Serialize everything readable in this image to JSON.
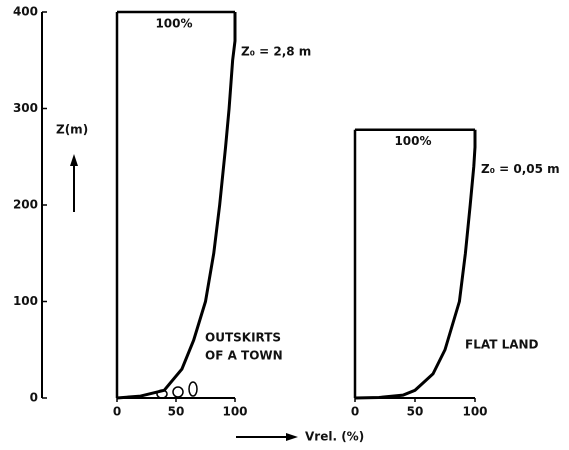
{
  "chart_data": [
    {
      "type": "line",
      "ylabel": "Z(m)",
      "xlabel": "Vrel. (%)",
      "top_label": "100%",
      "roughness": "Z₀ = 2,8 m",
      "terrain": [
        "OUTSKIRTS",
        "OF A TOWN"
      ],
      "x": [
        0,
        20,
        40,
        55,
        65,
        75,
        82,
        87,
        92,
        95,
        98,
        100,
        100
      ],
      "values": [
        0,
        2,
        8,
        30,
        60,
        100,
        150,
        200,
        260,
        300,
        350,
        370,
        400
      ],
      "xlim": [
        0,
        100
      ],
      "xticks": [
        0,
        50,
        100
      ],
      "ylim": [
        0,
        400
      ],
      "yticks": [
        0,
        100,
        200,
        300,
        400
      ],
      "color": "#000000"
    },
    {
      "type": "line",
      "top_label": "100%",
      "roughness": "Z₀ = 0,05 m",
      "terrain": [
        "FLAT LAND"
      ],
      "x": [
        0,
        20,
        40,
        50,
        65,
        75,
        87,
        92,
        96,
        99,
        100,
        100
      ],
      "values": [
        0,
        0.5,
        3,
        8,
        25,
        50,
        100,
        150,
        200,
        240,
        260,
        278
      ],
      "xlim": [
        0,
        100
      ],
      "xticks": [
        0,
        50,
        100
      ],
      "ylim": [
        0,
        400
      ],
      "color": "#000000"
    }
  ]
}
